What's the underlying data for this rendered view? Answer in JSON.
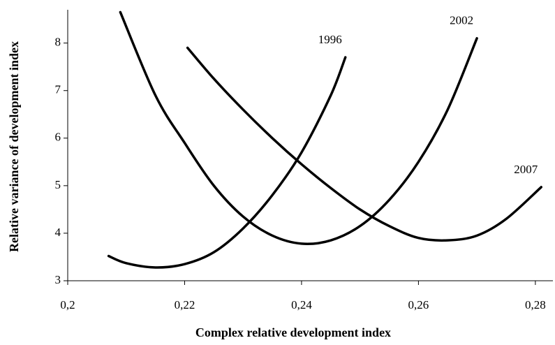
{
  "chart_data": {
    "type": "line",
    "xlabel": "Complex relative development index",
    "ylabel": "Relative variance of development index",
    "xlim": [
      0.2,
      0.283
    ],
    "xticks": [
      {
        "value": 0.2,
        "label": "0,2"
      },
      {
        "value": 0.22,
        "label": "0,22"
      },
      {
        "value": 0.24,
        "label": "0,24"
      },
      {
        "value": 0.26,
        "label": "0,26"
      },
      {
        "value": 0.28,
        "label": "0,28"
      }
    ],
    "ylim": [
      3,
      8.7
    ],
    "yticks": [
      3,
      4,
      5,
      6,
      7,
      8
    ],
    "grid": false,
    "series": [
      {
        "name": "1996",
        "color": "#000000",
        "x": [
          0.207,
          0.21,
          0.215,
          0.22,
          0.225,
          0.23,
          0.235,
          0.24,
          0.245,
          0.2475
        ],
        "values": [
          3.52,
          3.37,
          3.28,
          3.35,
          3.6,
          4.1,
          4.8,
          5.7,
          6.9,
          7.7
        ]
      },
      {
        "name": "2002",
        "color": "#000000",
        "x": [
          0.209,
          0.215,
          0.22,
          0.225,
          0.23,
          0.235,
          0.24,
          0.245,
          0.25,
          0.255,
          0.26,
          0.265,
          0.27
        ],
        "values": [
          8.65,
          6.9,
          5.9,
          5.0,
          4.35,
          3.95,
          3.78,
          3.85,
          4.15,
          4.7,
          5.5,
          6.6,
          8.1
        ]
      },
      {
        "name": "2007",
        "color": "#000000",
        "x": [
          0.2205,
          0.225,
          0.23,
          0.235,
          0.24,
          0.245,
          0.25,
          0.255,
          0.26,
          0.265,
          0.27,
          0.275,
          0.281
        ],
        "values": [
          7.9,
          7.25,
          6.6,
          6.0,
          5.45,
          4.95,
          4.5,
          4.15,
          3.9,
          3.85,
          3.95,
          4.3,
          4.97
        ]
      }
    ]
  }
}
